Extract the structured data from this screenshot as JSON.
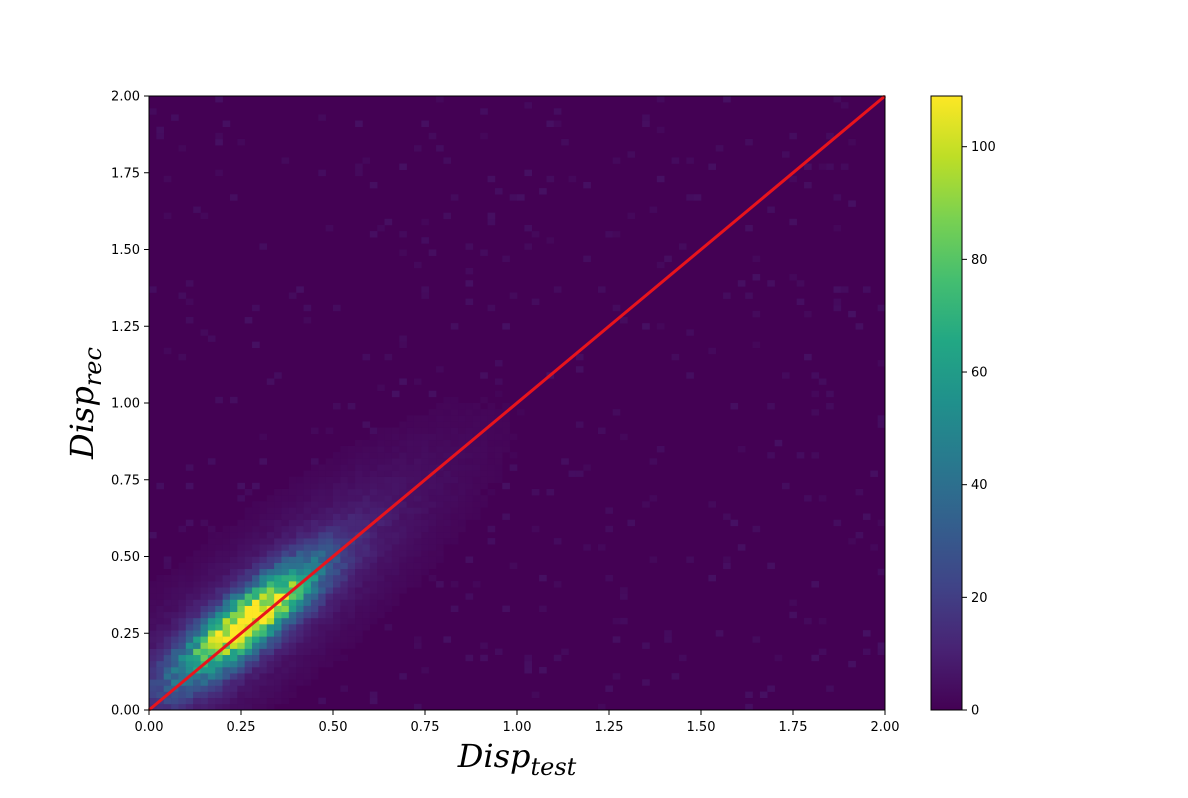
{
  "chart_data": {
    "type": "heatmap",
    "title": "",
    "xlabel": {
      "main": "Disp",
      "sub": "test"
    },
    "ylabel": {
      "main": "Disp",
      "sub": "rec"
    },
    "xlim": [
      0,
      2
    ],
    "ylim": [
      0,
      2
    ],
    "bins": 100,
    "x_ticks": [
      "0.00",
      "0.25",
      "0.50",
      "0.75",
      "1.00",
      "1.25",
      "1.50",
      "1.75",
      "2.00"
    ],
    "y_ticks": [
      "0.00",
      "0.25",
      "0.50",
      "0.75",
      "1.00",
      "1.25",
      "1.50",
      "1.75",
      "2.00"
    ],
    "x_tick_values": [
      0,
      0.25,
      0.5,
      0.75,
      1.0,
      1.25,
      1.5,
      1.75,
      2.0
    ],
    "y_tick_values": [
      0,
      0.25,
      0.5,
      0.75,
      1.0,
      1.25,
      1.5,
      1.75,
      2.0
    ],
    "density": {
      "peak_x": 0.27,
      "peak_y": 0.29,
      "peak_count": 109,
      "spread_along_diagonal": 0.17,
      "spread_across_diagonal": 0.05,
      "halo_spread_along": 0.45,
      "halo_spread_across": 0.12,
      "halo_weight": 0.12
    },
    "reference_line": {
      "x": [
        0,
        2
      ],
      "y": [
        0,
        2
      ],
      "color": "#e8141c"
    },
    "colorbar": {
      "min": 0,
      "max": 109,
      "ticks": [
        "0",
        "20",
        "40",
        "60",
        "80",
        "100"
      ],
      "tick_values": [
        0,
        20,
        40,
        60,
        80,
        100
      ],
      "colormap": "viridis"
    },
    "grid": false,
    "legend": "none"
  }
}
